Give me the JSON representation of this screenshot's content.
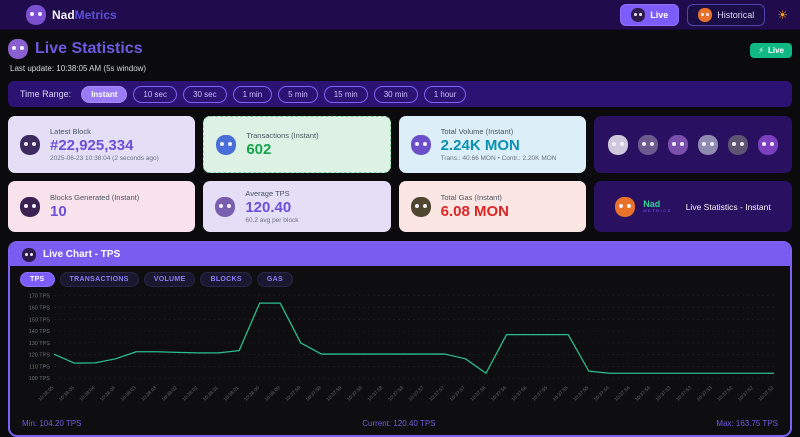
{
  "colors": {
    "accent": "#7c5cfa",
    "chart_line": "#2dbd8e",
    "mascot_logo": "#7b4fd0",
    "mascot_live_btn": "#2d1b4e",
    "mascot_historical": "#e8722a",
    "mascot_title": "#8a5fd0",
    "mascot_latest_block": "#3d2a5e",
    "mascot_transactions": "#4a6fd8",
    "mascot_volume": "#6a4fc8",
    "mascot_blocks": "#3a2352",
    "mascot_tps": "#7a5fae",
    "mascot_gas": "#4f4630",
    "mascot_branding": "#e8722a",
    "mascot_chart_header": "#2d1b4e"
  },
  "navbar": {
    "logo_part1": "Nad",
    "logo_part2": "Metrics",
    "live_button": "Live",
    "historical_button": "Historical",
    "theme_icon": "☀"
  },
  "page": {
    "title": "Live Statistics",
    "live_badge_icon": "⚡",
    "live_badge_text": "Live",
    "last_update": "Last update: 10:38:05 AM  (5s window)"
  },
  "time_range": {
    "label": "Time Range:",
    "options": [
      "Instant",
      "10 sec",
      "30 sec",
      "1 min",
      "5 min",
      "15 min",
      "30 min",
      "1 hour"
    ],
    "selected": "Instant"
  },
  "cards": {
    "latest_block": {
      "title": "Latest Block",
      "value": "#22,925,334",
      "sub": "2025-06-23 10:38:04 (2 seconds ago)"
    },
    "transactions": {
      "title": "Transactions (Instant)",
      "value": "602"
    },
    "total_volume": {
      "title": "Total Volume (Instant)",
      "value": "2.24K MON",
      "sub": "Trans.: 40.66 MON • Contr.: 2.20K MON"
    },
    "mascot_colors": [
      "#cfc8dc",
      "#6d5a8f",
      "#7a4fae",
      "#8f8ab0",
      "#5f5472",
      "#7b3fbf"
    ],
    "blocks_generated": {
      "title": "Blocks Generated (Instant)",
      "value": "10"
    },
    "average_tps": {
      "title": "Average TPS",
      "value": "120.40",
      "sub": "60.2 avg per block"
    },
    "total_gas": {
      "title": "Total Gas (Instant)",
      "value": "6.08 MON"
    },
    "branding": {
      "logo_part1": "Nad",
      "logo_part2": "METRICS",
      "text": "Live Statistics - Instant"
    }
  },
  "chart": {
    "header": "Live Chart - TPS",
    "tabs": [
      "TPS",
      "TRANSACTIONS",
      "VOLUME",
      "BLOCKS",
      "GAS"
    ],
    "active_tab": "TPS",
    "footer": {
      "min": "Min: 104.20 TPS",
      "current": "Current: 120.40 TPS",
      "max": "Max: 163.75 TPS"
    }
  },
  "chart_data": {
    "type": "line",
    "title": "Live Chart - TPS",
    "ylabel": "TPS",
    "ylim": [
      100,
      170
    ],
    "yticks": [
      100,
      110,
      120,
      130,
      140,
      150,
      160,
      170
    ],
    "ytick_suffix": " TPS",
    "grid": true,
    "legend": "none",
    "x_newest_first": true,
    "x": [
      "10:38:05",
      "10:38:05",
      "10:38:04",
      "10:38:04",
      "10:38:03",
      "10:38:03",
      "10:38:02",
      "10:38:02",
      "10:38:01",
      "10:38:01",
      "10:38:00",
      "10:38:00",
      "10:37:59",
      "10:37:59",
      "10:37:59",
      "10:37:58",
      "10:37:58",
      "10:37:58",
      "10:37:57",
      "10:37:57",
      "10:37:57",
      "10:37:56",
      "10:37:56",
      "10:37:56",
      "10:37:55",
      "10:37:55",
      "10:37:55",
      "10:37:54",
      "10:37:54",
      "10:37:54",
      "10:37:53",
      "10:37:53",
      "10:37:53",
      "10:37:52",
      "10:37:52",
      "10:37:52"
    ],
    "values": [
      120.4,
      112.8,
      113,
      116.5,
      122.5,
      122.5,
      122,
      121.5,
      121.5,
      123.5,
      163.75,
      163.75,
      130,
      120.5,
      120.5,
      120.5,
      120.5,
      120.5,
      120.5,
      120.5,
      116.5,
      104.2,
      137,
      137,
      137,
      137,
      106,
      104.2,
      104.2,
      104.2,
      104.2,
      104.2,
      104.2,
      104.2,
      104.2,
      104.2
    ]
  }
}
